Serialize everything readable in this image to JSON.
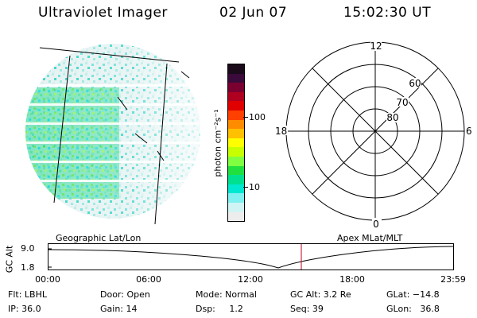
{
  "header": {
    "instrument": "Ultraviolet Imager",
    "date": "02 Jun 07",
    "time": "15:02:30 UT"
  },
  "left_panel": {
    "label": "Geographic Lat/Lon"
  },
  "right_panel": {
    "label": "Apex MLat/MLT",
    "mlt_labels": {
      "top": "12",
      "left": "18",
      "right": "6",
      "bottom": "0"
    },
    "lat_labels": [
      "60",
      "70",
      "80"
    ]
  },
  "colorbar": {
    "unit_label": "photon cm⁻²s⁻¹",
    "ticks": [
      "100",
      "10"
    ],
    "colors": [
      "#1a0a1a",
      "#3a0a3a",
      "#7a0030",
      "#b00020",
      "#e00000",
      "#ff4000",
      "#ff8c00",
      "#ffc000",
      "#ffff00",
      "#c8ff00",
      "#80ff40",
      "#20e040",
      "#00e090",
      "#00e8d0",
      "#80f0f0",
      "#d0f4f4",
      "#ededed"
    ]
  },
  "altitude_plot": {
    "axis_label": "GC Alt",
    "y_ticks": [
      "9.0",
      "1.8"
    ],
    "x_ticks": [
      "00:00",
      "06:00",
      "12:00",
      "18:00",
      "23:59"
    ],
    "marker_time": "15:02"
  },
  "info": {
    "filter_label": "Flt: LBHL",
    "ip_label": "IP: 36.0",
    "door_label": "Door: Open",
    "gain_label": "Gain: 14",
    "mode_label": "Mode: Normal",
    "dsp_label": "Dsp:     1.2",
    "gc_alt_label": "GC Alt: 3.2 Re",
    "seq_label": "Seq: 39",
    "glat_label": "GLat: −14.8",
    "glon_label": "GLon:   36.8"
  }
}
